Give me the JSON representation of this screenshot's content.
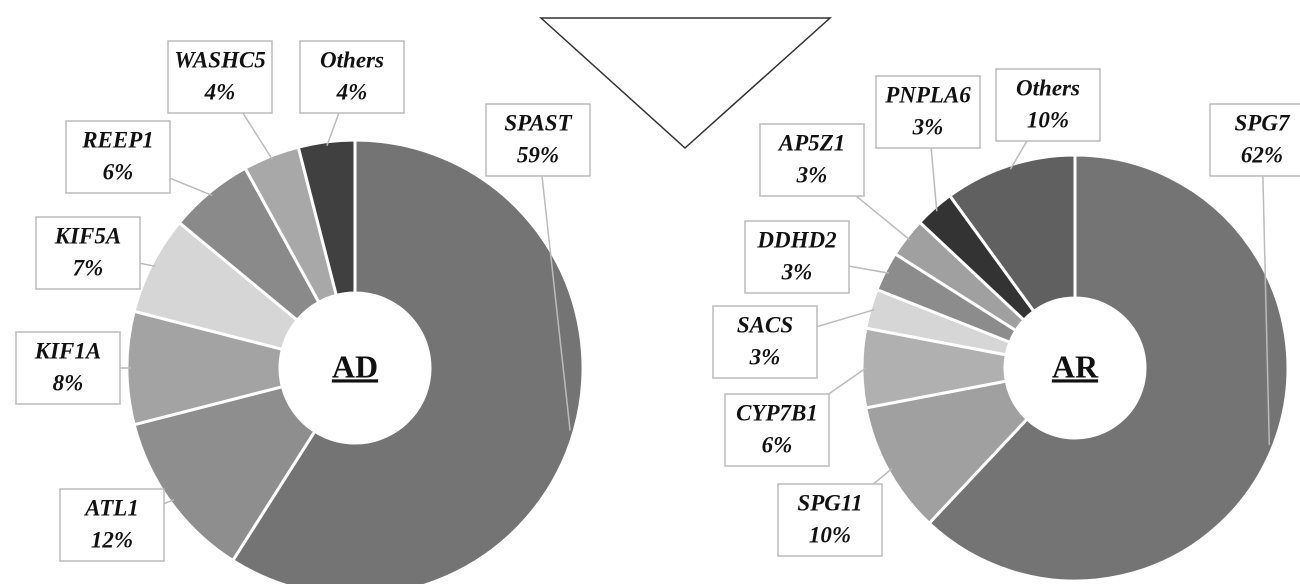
{
  "chart_data": [
    {
      "type": "donut",
      "title": "AD",
      "categories": [
        "SPAST",
        "ATL1",
        "KIF1A",
        "KIF5A",
        "REEP1",
        "WASHC5",
        "Others"
      ],
      "values": [
        59,
        12,
        8,
        7,
        6,
        4,
        4
      ],
      "value_labels": [
        "59%",
        "12%",
        "8%",
        "7%",
        "6%",
        "4%",
        "4%"
      ],
      "colors": [
        "#747474",
        "#8e8e8e",
        "#a3a3a3",
        "#d6d6d6",
        "#8a8a8a",
        "#a8a8a8",
        "#404040"
      ]
    },
    {
      "type": "donut",
      "title": "AR",
      "categories": [
        "SPG7",
        "SPG11",
        "CYP7B1",
        "SACS",
        "DDHD2",
        "AP5Z1",
        "PNPLA6",
        "Others"
      ],
      "values": [
        62,
        10,
        6,
        3,
        3,
        3,
        3,
        10
      ],
      "value_labels": [
        "62%",
        "10%",
        "6%",
        "3%",
        "3%",
        "3%",
        "3%",
        "10%"
      ],
      "colors": [
        "#747474",
        "#a0a0a0",
        "#b0b0b0",
        "#d6d6d6",
        "#8c8c8c",
        "#a0a0a0",
        "#333333",
        "#606060"
      ]
    }
  ]
}
